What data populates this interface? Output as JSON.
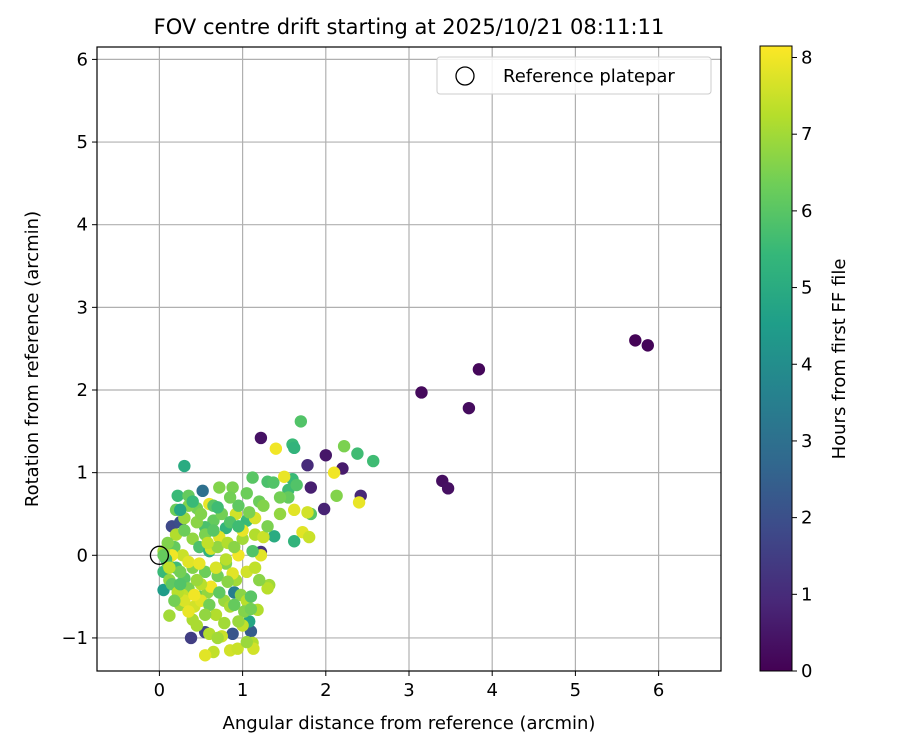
{
  "chart_data": {
    "type": "scatter",
    "title": "FOV centre drift starting at 2025/10/21 08:11:11",
    "xlabel": "Angular distance from reference (arcmin)",
    "ylabel": "Rotation from reference (arcmin)",
    "colorbar_label": "Hours from first FF file",
    "xlim": [
      -0.75,
      6.75
    ],
    "ylim": [
      -1.4,
      6.15
    ],
    "x_ticks": [
      0,
      1,
      2,
      3,
      4,
      5,
      6
    ],
    "y_ticks": [
      -1,
      0,
      1,
      2,
      3,
      4,
      5,
      6
    ],
    "colorbar_range": [
      0,
      8.15
    ],
    "colorbar_ticks": [
      0,
      1,
      2,
      3,
      4,
      5,
      6,
      7,
      8
    ],
    "colormap": [
      "#440154",
      "#482878",
      "#3e4989",
      "#31688e",
      "#26828e",
      "#1f9e89",
      "#35b779",
      "#6ece58",
      "#b5de2b",
      "#fde725"
    ],
    "grid": true,
    "legend": {
      "label": "Reference platepar",
      "position": "upper right"
    },
    "reference": {
      "x": 0,
      "y": 0
    },
    "points_columns": [
      "x",
      "y",
      "hours"
    ],
    "points": [
      [
        5.72,
        2.6,
        0.05
      ],
      [
        5.87,
        2.54,
        0.1
      ],
      [
        3.84,
        2.25,
        0.15
      ],
      [
        3.15,
        1.97,
        0.2
      ],
      [
        3.72,
        1.78,
        0.25
      ],
      [
        3.4,
        0.9,
        0.3
      ],
      [
        3.47,
        0.81,
        0.35
      ],
      [
        1.22,
        1.42,
        0.4
      ],
      [
        2.0,
        1.21,
        0.5
      ],
      [
        2.2,
        1.05,
        0.6
      ],
      [
        1.82,
        0.82,
        0.7
      ],
      [
        1.98,
        0.56,
        0.8
      ],
      [
        2.42,
        0.72,
        0.9
      ],
      [
        1.78,
        1.09,
        1.0
      ],
      [
        1.22,
        0.04,
        1.2
      ],
      [
        0.38,
        -1.0,
        1.5
      ],
      [
        0.55,
        -0.93,
        1.7
      ],
      [
        0.15,
        0.35,
        1.8
      ],
      [
        0.25,
        0.4,
        2.0
      ],
      [
        0.88,
        -0.95,
        2.2
      ],
      [
        1.1,
        -0.92,
        2.4
      ],
      [
        0.52,
        0.78,
        3.0
      ],
      [
        0.9,
        -0.45,
        3.5
      ],
      [
        0.05,
        -0.42,
        4.5
      ],
      [
        1.08,
        -0.8,
        4.8
      ],
      [
        0.3,
        1.08,
        5.0
      ],
      [
        1.6,
        1.34,
        5.5
      ],
      [
        1.62,
        1.3,
        5.3
      ],
      [
        2.38,
        1.23,
        5.6
      ],
      [
        2.57,
        1.14,
        5.6
      ],
      [
        1.7,
        1.62,
        5.9
      ],
      [
        1.6,
        0.92,
        5.5
      ],
      [
        1.3,
        0.89,
        5.8
      ],
      [
        1.12,
        0.94,
        6.0
      ],
      [
        1.37,
        0.88,
        5.9
      ],
      [
        1.55,
        0.79,
        5.6
      ],
      [
        1.62,
        0.17,
        5.3
      ],
      [
        1.38,
        0.23,
        5.0
      ],
      [
        0.22,
        0.72,
        5.5
      ],
      [
        0.35,
        0.72,
        6.2
      ],
      [
        0.45,
        0.57,
        6.4
      ],
      [
        0.72,
        0.82,
        6.6
      ],
      [
        0.88,
        0.82,
        6.5
      ],
      [
        0.65,
        0.42,
        6.2
      ],
      [
        1.82,
        0.5,
        6.0
      ],
      [
        2.22,
        1.32,
        6.5
      ],
      [
        2.13,
        0.72,
        6.6
      ],
      [
        0.55,
        0.34,
        5.8
      ],
      [
        0.8,
        0.33,
        5.3
      ],
      [
        1.05,
        0.42,
        5.5
      ],
      [
        1.2,
        0.65,
        6.3
      ],
      [
        0.4,
        0.2,
        6.8
      ],
      [
        0.48,
        0.1,
        5.8
      ],
      [
        0.6,
        0.05,
        5.2
      ],
      [
        0.18,
        0.1,
        6.2
      ],
      [
        0.05,
        -0.2,
        5.5
      ],
      [
        0.1,
        -0.1,
        6.5
      ],
      [
        0.2,
        -0.15,
        5.6
      ],
      [
        0.12,
        -0.3,
        6.8
      ],
      [
        0.3,
        -0.28,
        6.0
      ],
      [
        0.4,
        -0.15,
        6.6
      ],
      [
        0.55,
        -0.2,
        6.3
      ],
      [
        0.25,
        -0.6,
        6.9
      ],
      [
        0.35,
        -0.4,
        6.5
      ],
      [
        0.48,
        -0.5,
        6.2
      ],
      [
        0.58,
        -0.45,
        6.8
      ],
      [
        0.7,
        -0.25,
        6.4
      ],
      [
        0.8,
        -0.1,
        6.6
      ],
      [
        0.92,
        -0.3,
        7.0
      ],
      [
        0.78,
        -0.55,
        6.9
      ],
      [
        0.68,
        -0.72,
        7.2
      ],
      [
        0.85,
        -0.62,
        7.1
      ],
      [
        0.98,
        -0.48,
        6.7
      ],
      [
        1.05,
        -0.55,
        7.3
      ],
      [
        1.18,
        -0.66,
        7.2
      ],
      [
        1.0,
        -0.85,
        7.4
      ],
      [
        0.75,
        -0.98,
        7.5
      ],
      [
        0.85,
        -1.15,
        7.6
      ],
      [
        0.65,
        -1.17,
        7.4
      ],
      [
        0.55,
        -1.21,
        7.8
      ],
      [
        1.12,
        -1.06,
        7.2
      ],
      [
        1.13,
        -1.13,
        7.6
      ],
      [
        0.94,
        -1.13,
        7.5
      ],
      [
        1.32,
        -0.36,
        7.0
      ],
      [
        1.3,
        -0.4,
        7.3
      ],
      [
        0.12,
        -0.73,
        7.0
      ],
      [
        0.28,
        -0.48,
        7.4
      ],
      [
        0.42,
        -0.62,
        7.6
      ],
      [
        0.5,
        -0.55,
        7.8
      ],
      [
        0.62,
        -0.38,
        8.0
      ],
      [
        0.88,
        -0.22,
        7.8
      ],
      [
        0.95,
        0.0,
        8.0
      ],
      [
        1.05,
        -0.2,
        7.6
      ],
      [
        1.15,
        -0.15,
        7.4
      ],
      [
        1.22,
        0.0,
        7.8
      ],
      [
        1.15,
        0.25,
        7.2
      ],
      [
        1.25,
        0.22,
        7.5
      ],
      [
        1.0,
        0.2,
        7.0
      ],
      [
        0.72,
        0.22,
        7.8
      ],
      [
        0.6,
        0.62,
        7.9
      ],
      [
        0.92,
        0.5,
        7.6
      ],
      [
        1.15,
        0.45,
        7.7
      ],
      [
        1.4,
        1.29,
        8.0
      ],
      [
        1.5,
        0.95,
        7.9
      ],
      [
        1.62,
        0.55,
        7.8
      ],
      [
        1.78,
        0.52,
        7.6
      ],
      [
        1.72,
        0.28,
        7.8
      ],
      [
        1.8,
        0.22,
        7.5
      ],
      [
        2.1,
        1.0,
        8.0
      ],
      [
        2.4,
        0.64,
        7.9
      ],
      [
        0.2,
        0.25,
        7.2
      ],
      [
        0.28,
        0.0,
        7.5
      ],
      [
        0.15,
        0.0,
        8.0
      ],
      [
        0.35,
        -0.08,
        7.8
      ],
      [
        0.48,
        -0.1,
        7.9
      ],
      [
        0.62,
        0.08,
        7.6
      ],
      [
        0.8,
        -0.05,
        7.3
      ],
      [
        0.4,
        -0.78,
        7.1
      ],
      [
        0.3,
        -0.55,
        7.7
      ],
      [
        0.5,
        -0.35,
        7.3
      ],
      [
        0.3,
        0.45,
        6.9
      ],
      [
        0.45,
        0.4,
        6.7
      ],
      [
        0.7,
        0.1,
        6.8
      ],
      [
        0.55,
        0.25,
        6.5
      ],
      [
        0.75,
        0.5,
        6.4
      ],
      [
        0.95,
        0.6,
        6.1
      ],
      [
        1.05,
        0.75,
        6.3
      ],
      [
        1.25,
        0.6,
        6.6
      ],
      [
        0.85,
        0.4,
        5.9
      ],
      [
        0.65,
        0.3,
        6.0
      ],
      [
        0.35,
        0.6,
        6.6
      ],
      [
        0.2,
        0.55,
        6.3
      ],
      [
        0.08,
        -0.05,
        5.8
      ],
      [
        0.15,
        -0.35,
        6.1
      ],
      [
        0.25,
        -0.2,
        6.4
      ],
      [
        0.45,
        -0.3,
        6.9
      ],
      [
        0.6,
        -0.6,
        6.4
      ],
      [
        0.72,
        -0.45,
        6.1
      ],
      [
        0.82,
        -0.32,
        6.7
      ],
      [
        0.9,
        -0.6,
        6.2
      ],
      [
        1.02,
        -0.68,
        6.6
      ],
      [
        1.1,
        -0.5,
        6.0
      ],
      [
        1.2,
        -0.3,
        6.7
      ],
      [
        0.95,
        -0.8,
        6.9
      ],
      [
        0.78,
        -0.82,
        7.0
      ],
      [
        0.55,
        -0.72,
        6.8
      ],
      [
        0.45,
        -0.85,
        7.1
      ],
      [
        0.22,
        -0.45,
        7.3
      ],
      [
        0.12,
        -0.15,
        7.4
      ],
      [
        0.05,
        0.05,
        7.0
      ],
      [
        0.1,
        0.15,
        6.6
      ],
      [
        0.3,
        0.3,
        6.3
      ],
      [
        0.5,
        0.5,
        6.6
      ],
      [
        0.65,
        0.6,
        6.0
      ],
      [
        0.85,
        0.7,
        6.4
      ],
      [
        1.3,
        0.35,
        6.5
      ],
      [
        1.45,
        0.5,
        6.8
      ],
      [
        1.55,
        0.7,
        6.2
      ],
      [
        1.65,
        0.85,
        5.9
      ],
      [
        1.45,
        0.7,
        6.4
      ],
      [
        1.0,
        0.3,
        7.9
      ],
      [
        0.82,
        0.15,
        7.2
      ],
      [
        0.68,
        -0.15,
        7.7
      ],
      [
        0.58,
        0.15,
        7.4
      ],
      [
        0.42,
        -0.48,
        8.0
      ],
      [
        0.35,
        -0.68,
        7.9
      ],
      [
        0.6,
        -0.95,
        7.2
      ],
      [
        0.7,
        -1.0,
        7.0
      ],
      [
        1.05,
        -1.05,
        6.9
      ],
      [
        1.1,
        -0.65,
        6.4
      ],
      [
        0.25,
        -0.35,
        5.9
      ],
      [
        0.18,
        -0.55,
        6.4
      ],
      [
        0.05,
        0.0,
        6.2
      ],
      [
        0.95,
        0.35,
        5.6
      ],
      [
        1.08,
        0.52,
        6.5
      ],
      [
        0.4,
        0.65,
        5.5
      ],
      [
        0.25,
        0.55,
        4.8
      ],
      [
        0.7,
        0.58,
        5.6
      ],
      [
        1.12,
        0.05,
        5.9
      ],
      [
        0.9,
        0.1,
        6.7
      ]
    ]
  }
}
